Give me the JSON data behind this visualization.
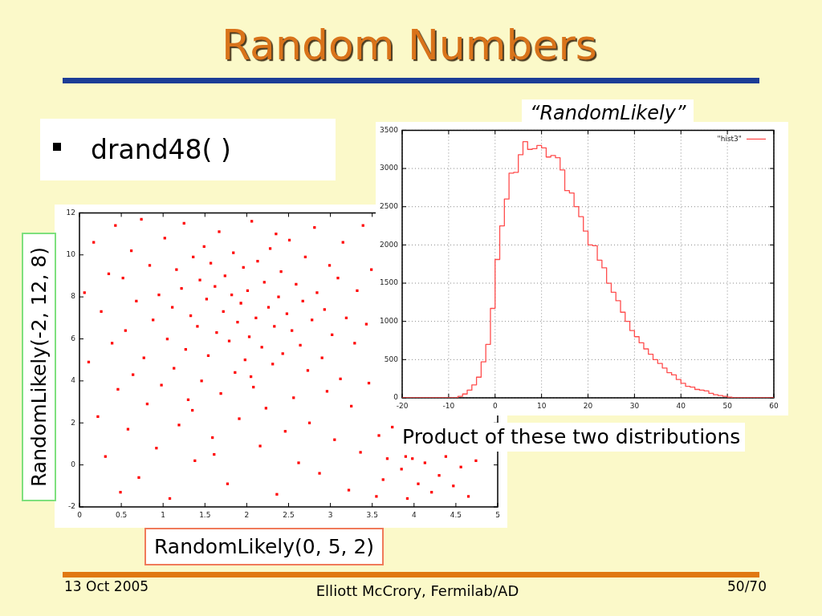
{
  "chart_data": [
    {
      "type": "scatter",
      "title": "Random Numbers",
      "subtitle": "drand48( )",
      "xlabel": "RandomLikely(0, 5, 2)",
      "ylabel": "RandomLikely(-2, 12, 8)",
      "x": [
        0.06,
        0.11,
        0.17,
        0.22,
        0.26,
        0.31,
        0.35,
        0.39,
        0.43,
        0.46,
        0.49,
        0.52,
        0.55,
        0.58,
        0.62,
        0.64,
        0.68,
        0.71,
        0.74,
        0.77,
        0.81,
        0.84,
        0.88,
        0.92,
        0.95,
        0.98,
        1.02,
        1.05,
        1.08,
        1.11,
        1.13,
        1.16,
        1.19,
        1.22,
        1.25,
        1.27,
        1.3,
        1.33,
        1.36,
        1.38,
        1.41,
        1.44,
        1.46,
        1.49,
        1.35,
        1.52,
        1.54,
        1.57,
        1.59,
        1.62,
        1.64,
        1.67,
        1.69,
        1.72,
        1.74,
        1.77,
        1.79,
        1.82,
        1.84,
        1.86,
        1.89,
        1.91,
        1.93,
        1.96,
        1.98,
        1.61,
        2.01,
        2.03,
        2.06,
        2.08,
        2.11,
        2.13,
        2.16,
        2.18,
        2.21,
        2.23,
        2.26,
        2.28,
        2.31,
        2.33,
        2.36,
        2.38,
        2.41,
        2.43,
        2.46,
        2.48,
        2.05,
        2.35,
        2.51,
        2.54,
        2.56,
        2.59,
        2.62,
        2.64,
        2.67,
        2.7,
        2.73,
        2.75,
        2.78,
        2.81,
        2.84,
        2.87,
        2.9,
        2.93,
        2.96,
        2.99,
        3.02,
        3.05,
        3.09,
        3.12,
        3.15,
        3.19,
        3.22,
        3.25,
        3.29,
        3.32,
        3.36,
        3.39,
        3.43,
        3.46,
        3.49,
        3.55,
        3.58,
        3.63,
        3.68,
        3.74,
        3.85,
        3.9,
        3.92,
        3.98,
        4.05,
        4.13,
        4.21,
        4.3,
        4.38,
        4.47,
        4.56,
        4.65,
        4.74
      ],
      "values": [
        8.2,
        4.9,
        10.6,
        2.3,
        7.3,
        0.4,
        9.1,
        5.8,
        11.4,
        3.6,
        -1.3,
        8.9,
        6.4,
        1.7,
        10.2,
        4.3,
        7.8,
        -0.6,
        11.7,
        5.1,
        2.9,
        9.5,
        6.9,
        0.8,
        8.1,
        3.8,
        10.8,
        6.0,
        -1.6,
        7.5,
        4.6,
        9.3,
        1.9,
        8.4,
        11.5,
        5.5,
        3.1,
        7.1,
        9.9,
        0.2,
        6.6,
        8.8,
        4.0,
        10.4,
        2.6,
        7.9,
        5.2,
        9.6,
        1.3,
        8.5,
        6.3,
        11.1,
        3.4,
        7.3,
        9.0,
        -0.9,
        5.9,
        8.1,
        10.1,
        4.4,
        6.8,
        2.2,
        7.7,
        9.4,
        5.0,
        0.5,
        8.3,
        6.1,
        11.6,
        3.7,
        7.0,
        9.7,
        0.9,
        5.6,
        8.7,
        2.7,
        7.5,
        10.3,
        4.8,
        6.6,
        -1.4,
        8.0,
        9.2,
        5.3,
        1.6,
        7.2,
        4.2,
        11.0,
        10.7,
        6.4,
        3.2,
        8.6,
        0.1,
        5.7,
        7.8,
        9.9,
        4.5,
        2.0,
        6.9,
        11.3,
        8.2,
        -0.4,
        5.1,
        7.4,
        3.5,
        9.5,
        6.2,
        1.2,
        8.9,
        4.1,
        10.6,
        7.0,
        -1.2,
        2.8,
        5.8,
        8.3,
        0.6,
        11.4,
        6.7,
        3.9,
        9.3,
        -1.5,
        1.4,
        -0.7,
        0.3,
        1.8,
        -0.2,
        0.4,
        -1.6,
        0.3,
        -0.9,
        0.1,
        -1.3,
        -0.5,
        0.4,
        -1.0,
        -0.1,
        -1.5,
        0.2
      ],
      "color": "#ff0000",
      "marker": "square",
      "xlim": [
        0,
        5
      ],
      "xticks": [
        0,
        0.5,
        1,
        1.5,
        2,
        2.5,
        3,
        3.5,
        4,
        4.5,
        5
      ],
      "ylim": [
        -2,
        12
      ],
      "yticks": [
        -2,
        0,
        2,
        4,
        6,
        8,
        10,
        12
      ],
      "annotations": [
        "13 Oct 2005",
        "Elliott McCrory, Fermilab/AD",
        "50/70"
      ]
    },
    {
      "type": "histogram",
      "title": "“RandomLikely”",
      "bins": [
        -20,
        -19,
        -18,
        -17,
        -16,
        -15,
        -14,
        -13,
        -12,
        -11,
        -10,
        -9,
        -8,
        -7,
        -6,
        -5,
        -4,
        -3,
        -2,
        -1,
        0,
        1,
        2,
        3,
        4,
        5,
        6,
        7,
        8,
        9,
        10,
        11,
        12,
        13,
        14,
        15,
        16,
        17,
        18,
        19,
        20,
        21,
        22,
        23,
        24,
        25,
        26,
        27,
        28,
        29,
        30,
        31,
        32,
        33,
        34,
        35,
        36,
        37,
        38,
        39,
        40,
        41,
        42,
        43,
        44,
        45,
        46,
        47,
        48,
        49,
        50,
        51,
        52,
        53,
        54,
        55,
        56,
        57,
        58,
        59,
        60
      ],
      "series": [
        {
          "name": "\"hist3\"",
          "color": "#ff4d4d",
          "values": [
            0,
            0,
            0,
            0,
            0,
            0,
            0,
            0,
            0,
            0,
            0,
            0,
            20,
            50,
            100,
            170,
            270,
            470,
            700,
            1170,
            1810,
            2250,
            2600,
            2940,
            2950,
            3180,
            3350,
            3250,
            3260,
            3300,
            3270,
            3150,
            3170,
            3140,
            2980,
            2710,
            2680,
            2500,
            2370,
            2180,
            2000,
            1990,
            1800,
            1700,
            1500,
            1380,
            1270,
            1120,
            1000,
            880,
            800,
            720,
            640,
            570,
            500,
            450,
            390,
            330,
            300,
            240,
            190,
            150,
            140,
            110,
            100,
            90,
            60,
            40,
            30,
            20,
            10,
            0,
            0,
            0,
            0,
            0,
            0,
            0,
            0,
            0
          ]
        }
      ],
      "xlim": [
        -20,
        60
      ],
      "xticks": [
        -20,
        -10,
        0,
        10,
        20,
        30,
        40,
        50,
        60
      ],
      "ylim": [
        0,
        3500
      ],
      "yticks": [
        0,
        500,
        1000,
        1500,
        2000,
        2500,
        3000,
        3500
      ],
      "grid": true,
      "legend": "top right",
      "annotations": [
        "Product of these two distributions"
      ]
    }
  ]
}
